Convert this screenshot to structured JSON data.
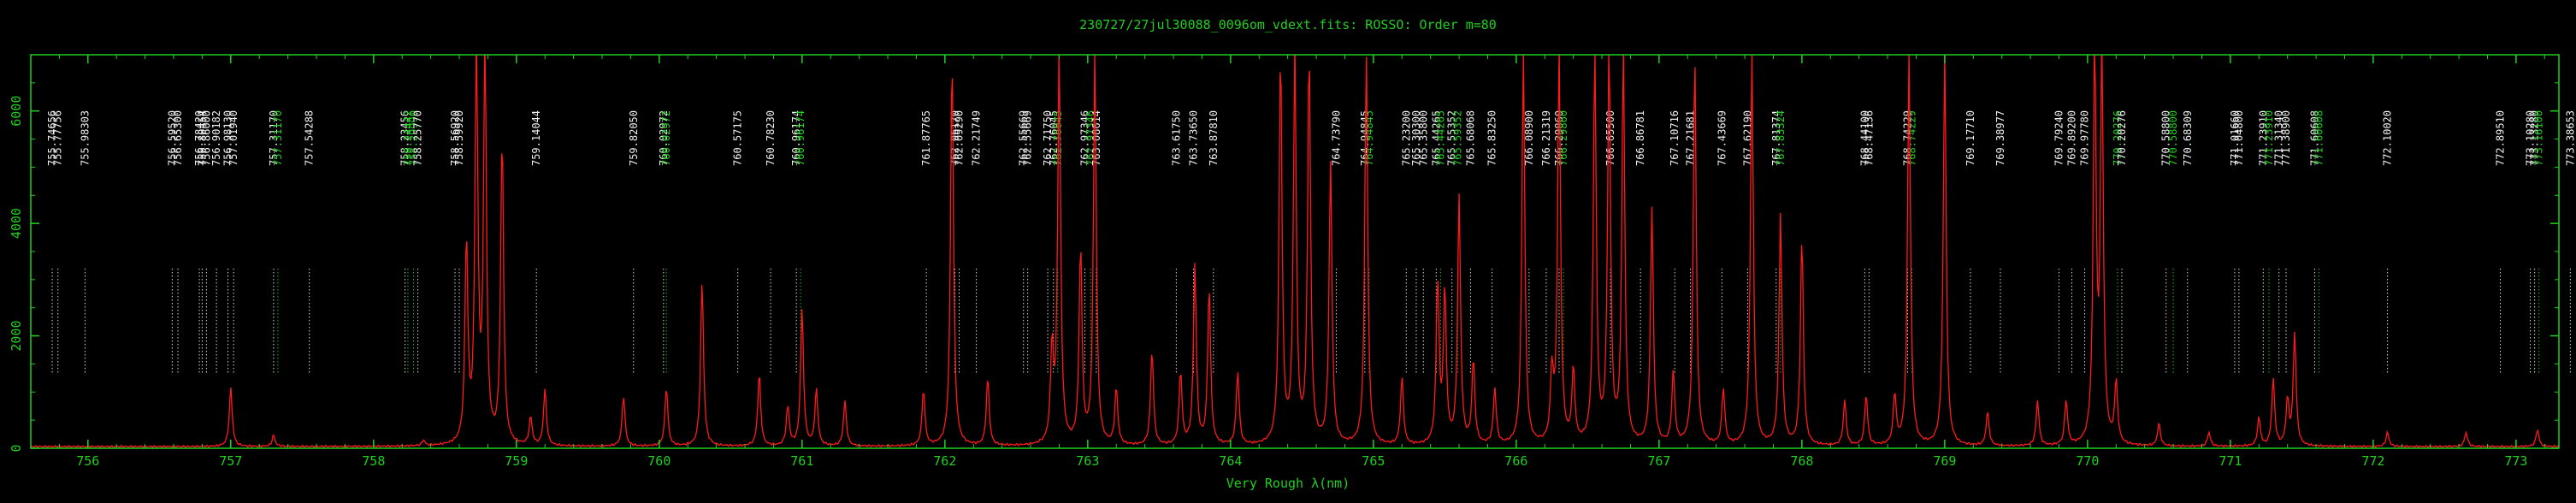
{
  "chart_data": {
    "type": "line",
    "title": "230727/27jul30088_0096om_vdext.fits: ROSSO: Order m=80",
    "xlabel": "Very Rough λ(nm)",
    "ylabel": "",
    "xlim": [
      755.6,
      773.3
    ],
    "ylim": [
      0,
      7000
    ],
    "x_ticks": [
      756,
      757,
      758,
      759,
      760,
      761,
      762,
      763,
      764,
      765,
      766,
      767,
      768,
      769,
      770,
      771,
      772,
      773
    ],
    "y_ticks": [
      0,
      2000,
      4000,
      6000
    ],
    "grid": false,
    "colors": {
      "axis": "#1fd01f",
      "spectrum": "#ff1a1a",
      "label_white": "#f0f0f0",
      "label_green": "#1fd01f"
    },
    "series": [
      {
        "color": "#ff1a1a",
        "baseline": 30,
        "peaks": [
          {
            "x": 757.0,
            "y": 1050
          },
          {
            "x": 757.3,
            "y": 200
          },
          {
            "x": 758.35,
            "y": 100
          },
          {
            "x": 758.65,
            "y": 3600
          },
          {
            "x": 758.72,
            "y": 7000
          },
          {
            "x": 758.78,
            "y": 7000
          },
          {
            "x": 758.9,
            "y": 5500
          },
          {
            "x": 759.1,
            "y": 500
          },
          {
            "x": 759.2,
            "y": 1000
          },
          {
            "x": 759.75,
            "y": 900
          },
          {
            "x": 760.05,
            "y": 1050
          },
          {
            "x": 760.3,
            "y": 2950
          },
          {
            "x": 760.7,
            "y": 1300
          },
          {
            "x": 760.9,
            "y": 700
          },
          {
            "x": 761.0,
            "y": 2450
          },
          {
            "x": 761.1,
            "y": 1000
          },
          {
            "x": 761.3,
            "y": 800
          },
          {
            "x": 761.85,
            "y": 1000
          },
          {
            "x": 762.05,
            "y": 7000
          },
          {
            "x": 762.3,
            "y": 1200
          },
          {
            "x": 762.75,
            "y": 1700
          },
          {
            "x": 762.8,
            "y": 7000
          },
          {
            "x": 762.95,
            "y": 3500
          },
          {
            "x": 763.05,
            "y": 7000
          },
          {
            "x": 763.2,
            "y": 1000
          },
          {
            "x": 763.45,
            "y": 1700
          },
          {
            "x": 763.65,
            "y": 1300
          },
          {
            "x": 763.75,
            "y": 3200
          },
          {
            "x": 763.85,
            "y": 2800
          },
          {
            "x": 764.05,
            "y": 1300
          },
          {
            "x": 764.35,
            "y": 7000
          },
          {
            "x": 764.45,
            "y": 7000
          },
          {
            "x": 764.55,
            "y": 7000
          },
          {
            "x": 764.7,
            "y": 5000
          },
          {
            "x": 764.95,
            "y": 7000
          },
          {
            "x": 765.2,
            "y": 1200
          },
          {
            "x": 765.45,
            "y": 2900
          },
          {
            "x": 765.5,
            "y": 2700
          },
          {
            "x": 765.6,
            "y": 4400
          },
          {
            "x": 765.7,
            "y": 1500
          },
          {
            "x": 765.85,
            "y": 1000
          },
          {
            "x": 766.05,
            "y": 7000
          },
          {
            "x": 766.25,
            "y": 1200
          },
          {
            "x": 766.3,
            "y": 7000
          },
          {
            "x": 766.4,
            "y": 1300
          },
          {
            "x": 766.55,
            "y": 7000
          },
          {
            "x": 766.65,
            "y": 7000
          },
          {
            "x": 766.75,
            "y": 7000
          },
          {
            "x": 766.95,
            "y": 4200
          },
          {
            "x": 767.1,
            "y": 1300
          },
          {
            "x": 767.25,
            "y": 7000
          },
          {
            "x": 767.45,
            "y": 1000
          },
          {
            "x": 767.65,
            "y": 7000
          },
          {
            "x": 767.85,
            "y": 4100
          },
          {
            "x": 768.0,
            "y": 3700
          },
          {
            "x": 768.3,
            "y": 800
          },
          {
            "x": 768.45,
            "y": 900
          },
          {
            "x": 768.65,
            "y": 900
          },
          {
            "x": 768.75,
            "y": 7000
          },
          {
            "x": 769.0,
            "y": 7000
          },
          {
            "x": 769.3,
            "y": 600
          },
          {
            "x": 769.65,
            "y": 800
          },
          {
            "x": 769.85,
            "y": 800
          },
          {
            "x": 770.05,
            "y": 7000
          },
          {
            "x": 770.1,
            "y": 7000
          },
          {
            "x": 770.2,
            "y": 1100
          },
          {
            "x": 770.5,
            "y": 400
          },
          {
            "x": 770.85,
            "y": 250
          },
          {
            "x": 771.2,
            "y": 500
          },
          {
            "x": 771.3,
            "y": 1200
          },
          {
            "x": 771.4,
            "y": 800
          },
          {
            "x": 771.45,
            "y": 2000
          },
          {
            "x": 772.1,
            "y": 250
          },
          {
            "x": 772.65,
            "y": 250
          },
          {
            "x": 773.15,
            "y": 300
          }
        ]
      }
    ],
    "line_ids": [
      {
        "x": 755.75,
        "label": "755.74656",
        "color": "#f0f0f0"
      },
      {
        "x": 755.79,
        "label": "755.77756",
        "color": "#f0f0f0"
      },
      {
        "x": 755.98,
        "label": "755.98303",
        "color": "#f0f0f0"
      },
      {
        "x": 756.59,
        "label": "756.59520",
        "color": "#f0f0f0"
      },
      {
        "x": 756.63,
        "label": "756.65300",
        "color": "#f0f0f0"
      },
      {
        "x": 756.78,
        "label": "756.78420",
        "color": "#f0f0f0"
      },
      {
        "x": 756.8,
        "label": "756.80454",
        "color": "#f0f0f0"
      },
      {
        "x": 756.83,
        "label": "756.86000",
        "color": "#f0f0f0"
      },
      {
        "x": 756.9,
        "label": "756.90182",
        "color": "#f0f0f0"
      },
      {
        "x": 756.98,
        "label": "756.98130",
        "color": "#f0f0f0"
      },
      {
        "x": 757.02,
        "label": "757.01940",
        "color": "#f0f0f0"
      },
      {
        "x": 757.3,
        "label": "757.31170",
        "color": "#f0f0f0"
      },
      {
        "x": 757.33,
        "label": "757.31170",
        "color": "#1fd01f"
      },
      {
        "x": 757.55,
        "label": "757.54288",
        "color": "#f0f0f0"
      },
      {
        "x": 758.22,
        "label": "758.23456",
        "color": "#f0f0f0"
      },
      {
        "x": 758.24,
        "label": "758.24442",
        "color": "#1fd01f"
      },
      {
        "x": 758.28,
        "label": "758.29990",
        "color": "#1fd01f"
      },
      {
        "x": 758.31,
        "label": "758.25770",
        "color": "#f0f0f0"
      },
      {
        "x": 758.57,
        "label": "758.56920",
        "color": "#f0f0f0"
      },
      {
        "x": 758.6,
        "label": "758.59920",
        "color": "#f0f0f0"
      },
      {
        "x": 759.14,
        "label": "759.14044",
        "color": "#f0f0f0"
      },
      {
        "x": 759.82,
        "label": "759.82050",
        "color": "#f0f0f0"
      },
      {
        "x": 760.03,
        "label": "760.02972",
        "color": "#f0f0f0"
      },
      {
        "x": 760.05,
        "label": "760.02972",
        "color": "#1fd01f"
      },
      {
        "x": 760.55,
        "label": "760.57175",
        "color": "#f0f0f0"
      },
      {
        "x": 760.78,
        "label": "760.78230",
        "color": "#f0f0f0"
      },
      {
        "x": 760.96,
        "label": "760.96174",
        "color": "#f0f0f0"
      },
      {
        "x": 760.99,
        "label": "760.96174",
        "color": "#1fd01f"
      },
      {
        "x": 761.87,
        "label": "761.87765",
        "color": "#f0f0f0"
      },
      {
        "x": 762.07,
        "label": "762.06170",
        "color": "#f0f0f0"
      },
      {
        "x": 762.1,
        "label": "762.09290",
        "color": "#f0f0f0"
      },
      {
        "x": 762.22,
        "label": "762.21749",
        "color": "#f0f0f0"
      },
      {
        "x": 762.55,
        "label": "762.55669",
        "color": "#f0f0f0"
      },
      {
        "x": 762.58,
        "label": "762.55669",
        "color": "#f0f0f0"
      },
      {
        "x": 762.72,
        "label": "762.71750",
        "color": "#f0f0f0"
      },
      {
        "x": 762.76,
        "label": "762.76045",
        "color": "#f0f0f0"
      },
      {
        "x": 762.79,
        "label": "762.76045",
        "color": "#1fd01f"
      },
      {
        "x": 762.98,
        "label": "762.97346",
        "color": "#f0f0f0"
      },
      {
        "x": 763.02,
        "label": "762.97346",
        "color": "#1fd01f"
      },
      {
        "x": 763.06,
        "label": "763.08614",
        "color": "#f0f0f0"
      },
      {
        "x": 763.62,
        "label": "763.61750",
        "color": "#f0f0f0"
      },
      {
        "x": 763.74,
        "label": "763.73650",
        "color": "#f0f0f0"
      },
      {
        "x": 763.88,
        "label": "763.87810",
        "color": "#f0f0f0"
      },
      {
        "x": 764.74,
        "label": "764.73790",
        "color": "#f0f0f0"
      },
      {
        "x": 764.94,
        "label": "764.94845",
        "color": "#f0f0f0"
      },
      {
        "x": 764.97,
        "label": "764.94845",
        "color": "#1fd01f"
      },
      {
        "x": 765.23,
        "label": "765.23200",
        "color": "#f0f0f0"
      },
      {
        "x": 765.3,
        "label": "765.30300",
        "color": "#f0f0f0"
      },
      {
        "x": 765.35,
        "label": "765.35800",
        "color": "#f0f0f0"
      },
      {
        "x": 765.44,
        "label": "765.44265",
        "color": "#f0f0f0"
      },
      {
        "x": 765.47,
        "label": "765.44265",
        "color": "#1fd01f"
      },
      {
        "x": 765.55,
        "label": "765.55352",
        "color": "#f0f0f0"
      },
      {
        "x": 765.59,
        "label": "765.59352",
        "color": "#1fd01f"
      },
      {
        "x": 765.68,
        "label": "765.68068",
        "color": "#f0f0f0"
      },
      {
        "x": 765.83,
        "label": "765.83250",
        "color": "#f0f0f0"
      },
      {
        "x": 766.09,
        "label": "766.08900",
        "color": "#f0f0f0"
      },
      {
        "x": 766.21,
        "label": "766.21319",
        "color": "#f0f0f0"
      },
      {
        "x": 766.3,
        "label": "766.29860",
        "color": "#f0f0f0"
      },
      {
        "x": 766.33,
        "label": "766.29860",
        "color": "#1fd01f"
      },
      {
        "x": 766.66,
        "label": "766.65500",
        "color": "#f0f0f0"
      },
      {
        "x": 766.87,
        "label": "766.86781",
        "color": "#f0f0f0"
      },
      {
        "x": 767.11,
        "label": "767.10716",
        "color": "#f0f0f0"
      },
      {
        "x": 767.22,
        "label": "767.21681",
        "color": "#f0f0f0"
      },
      {
        "x": 767.44,
        "label": "767.43669",
        "color": "#f0f0f0"
      },
      {
        "x": 767.62,
        "label": "767.62190",
        "color": "#f0f0f0"
      },
      {
        "x": 767.82,
        "label": "767.81374",
        "color": "#f0f0f0"
      },
      {
        "x": 767.85,
        "label": "767.83324",
        "color": "#1fd01f"
      },
      {
        "x": 768.44,
        "label": "768.44100",
        "color": "#f0f0f0"
      },
      {
        "x": 768.47,
        "label": "768.47136",
        "color": "#f0f0f0"
      },
      {
        "x": 768.74,
        "label": "768.74229",
        "color": "#f0f0f0"
      },
      {
        "x": 768.77,
        "label": "768.74229",
        "color": "#1fd01f"
      },
      {
        "x": 769.18,
        "label": "769.17710",
        "color": "#f0f0f0"
      },
      {
        "x": 769.39,
        "label": "769.38977",
        "color": "#f0f0f0"
      },
      {
        "x": 769.8,
        "label": "769.79240",
        "color": "#f0f0f0"
      },
      {
        "x": 769.89,
        "label": "769.89200",
        "color": "#f0f0f0"
      },
      {
        "x": 769.98,
        "label": "769.97780",
        "color": "#f0f0f0"
      },
      {
        "x": 770.21,
        "label": "770.20276",
        "color": "#1fd01f"
      },
      {
        "x": 770.24,
        "label": "770.20276",
        "color": "#f0f0f0"
      },
      {
        "x": 770.55,
        "label": "770.58800",
        "color": "#f0f0f0"
      },
      {
        "x": 770.6,
        "label": "770.58800",
        "color": "#1fd01f"
      },
      {
        "x": 770.7,
        "label": "770.68309",
        "color": "#f0f0f0"
      },
      {
        "x": 771.03,
        "label": "771.01660",
        "color": "#f0f0f0"
      },
      {
        "x": 771.06,
        "label": "771.04800",
        "color": "#f0f0f0"
      },
      {
        "x": 771.23,
        "label": "771.23910",
        "color": "#f0f0f0"
      },
      {
        "x": 771.27,
        "label": "771.23910",
        "color": "#1fd01f"
      },
      {
        "x": 771.34,
        "label": "771.31340",
        "color": "#f0f0f0"
      },
      {
        "x": 771.39,
        "label": "771.38900",
        "color": "#f0f0f0"
      },
      {
        "x": 771.59,
        "label": "771.60608",
        "color": "#f0f0f0"
      },
      {
        "x": 771.62,
        "label": "771.60608",
        "color": "#1fd01f"
      },
      {
        "x": 772.1,
        "label": "772.10020",
        "color": "#f0f0f0"
      },
      {
        "x": 772.89,
        "label": "772.89510",
        "color": "#f0f0f0"
      },
      {
        "x": 773.1,
        "label": "773.10280",
        "color": "#f0f0f0"
      },
      {
        "x": 773.13,
        "label": "773.13280",
        "color": "#f0f0f0"
      },
      {
        "x": 773.16,
        "label": "773.16100",
        "color": "#1fd01f"
      },
      {
        "x": 773.38,
        "label": "773.38653",
        "color": "#f0f0f0"
      }
    ]
  }
}
